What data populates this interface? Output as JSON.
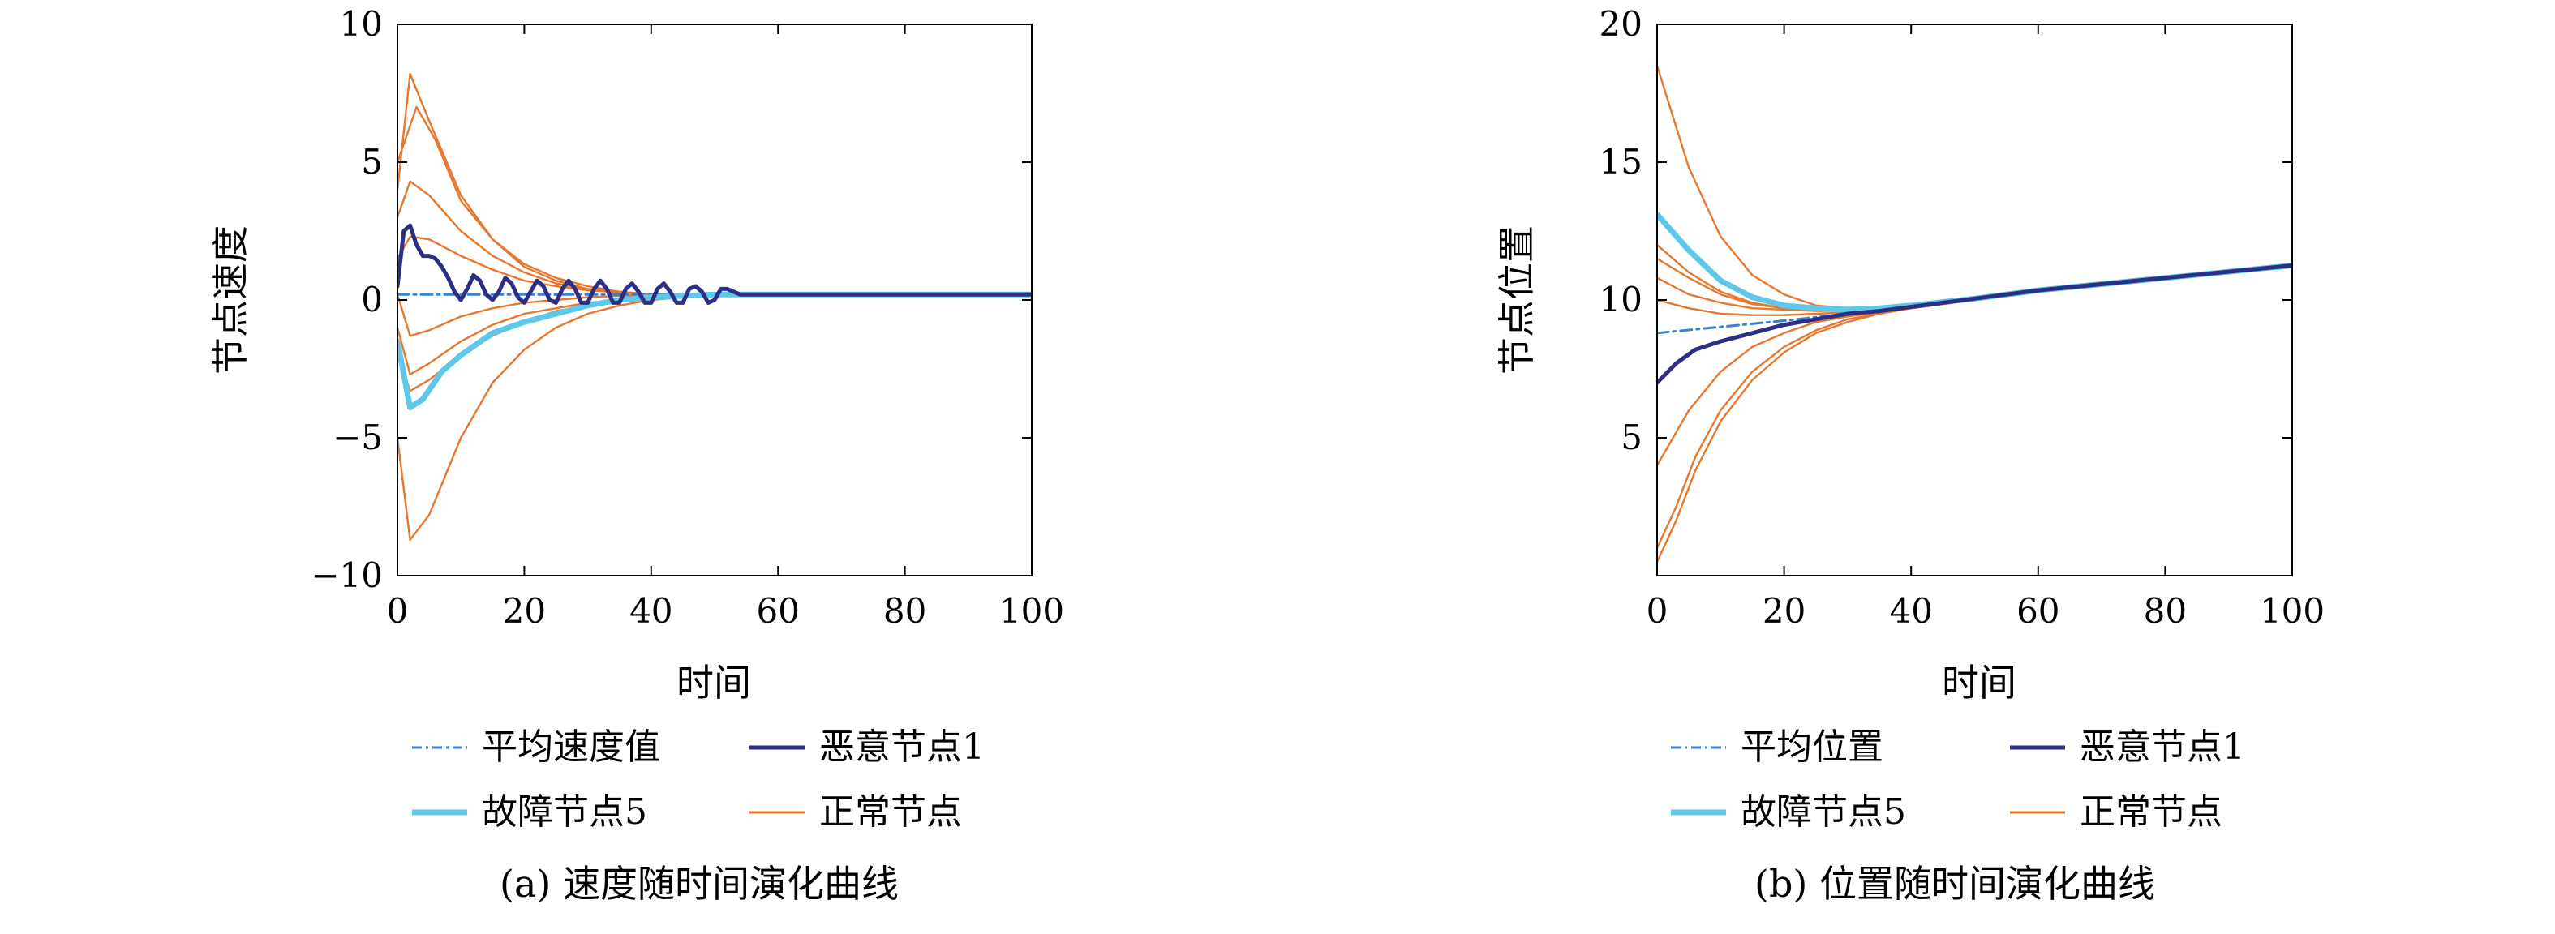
{
  "chart_data": [
    {
      "type": "line",
      "caption": "(a) 速度随时间演化曲线",
      "xlabel": "时间",
      "ylabel": "节点速度",
      "xlim": [
        0,
        100
      ],
      "ylim": [
        -10,
        10
      ],
      "xticks": [
        0,
        20,
        40,
        60,
        80,
        100
      ],
      "xtick_labels": [
        "0",
        "20",
        "40",
        "60",
        "80",
        "100"
      ],
      "yticks": [
        -10,
        -5,
        0,
        5,
        10
      ],
      "ytick_labels": [
        "−10",
        "−5",
        "0",
        "5",
        "10"
      ],
      "grid": false,
      "legend_position": "bottom",
      "legend": [
        {
          "label": "平均速度值",
          "color": "#3a7fd0",
          "style": "dashdot"
        },
        {
          "label": "恶意节点1",
          "color": "#2b2f86",
          "style": "solid"
        },
        {
          "label": "故障节点5",
          "color": "#5ec8e8",
          "style": "solid"
        },
        {
          "label": "正常节点",
          "color": "#e8772e",
          "style": "solid"
        }
      ],
      "series": [
        {
          "name": "正常节点",
          "color": "#e8772e",
          "x": [
            0,
            2,
            5,
            10,
            15,
            20,
            25,
            30,
            35,
            40,
            50,
            60,
            100
          ],
          "y": [
            4,
            8.2,
            6.5,
            3.8,
            2.2,
            1.2,
            0.7,
            0.4,
            0.3,
            0.2,
            0.2,
            0.2,
            0.2
          ]
        },
        {
          "name": "正常节点",
          "color": "#e8772e",
          "x": [
            0,
            3,
            6,
            10,
            15,
            20,
            25,
            30,
            35,
            40,
            50,
            60,
            100
          ],
          "y": [
            5,
            7,
            5.8,
            3.6,
            2.2,
            1.3,
            0.8,
            0.5,
            0.3,
            0.2,
            0.2,
            0.2,
            0.2
          ]
        },
        {
          "name": "正常节点",
          "color": "#e8772e",
          "x": [
            0,
            2,
            5,
            10,
            15,
            20,
            25,
            30,
            35,
            40,
            50,
            60,
            100
          ],
          "y": [
            3,
            4.3,
            3.8,
            2.5,
            1.6,
            1.0,
            0.6,
            0.4,
            0.3,
            0.2,
            0.2,
            0.2,
            0.2
          ]
        },
        {
          "name": "正常节点",
          "color": "#e8772e",
          "x": [
            0,
            2,
            5,
            10,
            15,
            20,
            25,
            30,
            40,
            50,
            60,
            100
          ],
          "y": [
            1.5,
            2.3,
            2.2,
            1.6,
            1.1,
            0.7,
            0.5,
            0.35,
            0.2,
            0.2,
            0.2,
            0.2
          ]
        },
        {
          "name": "正常节点",
          "color": "#e8772e",
          "x": [
            0,
            2,
            5,
            10,
            15,
            20,
            25,
            30,
            40,
            50,
            60,
            100
          ],
          "y": [
            0.2,
            -1.3,
            -1.1,
            -0.6,
            -0.3,
            -0.1,
            0.0,
            0.1,
            0.2,
            0.2,
            0.2,
            0.2
          ]
        },
        {
          "name": "正常节点",
          "color": "#e8772e",
          "x": [
            0,
            2,
            5,
            10,
            15,
            20,
            25,
            30,
            40,
            50,
            60,
            100
          ],
          "y": [
            -1,
            -2.7,
            -2.3,
            -1.5,
            -0.9,
            -0.5,
            -0.3,
            -0.1,
            0.1,
            0.2,
            0.2,
            0.2
          ]
        },
        {
          "name": "正常节点",
          "color": "#e8772e",
          "x": [
            0,
            2,
            5,
            10,
            15,
            20,
            25,
            30,
            40,
            50,
            60,
            100
          ],
          "y": [
            -2,
            -3.3,
            -2.9,
            -2.0,
            -1.3,
            -0.8,
            -0.4,
            -0.2,
            0.1,
            0.2,
            0.2,
            0.2
          ]
        },
        {
          "name": "正常节点",
          "color": "#e8772e",
          "x": [
            0,
            2,
            5,
            10,
            15,
            20,
            25,
            30,
            35,
            40,
            50,
            60,
            100
          ],
          "y": [
            -5,
            -8.7,
            -7.8,
            -5.0,
            -3.0,
            -1.8,
            -1.0,
            -0.5,
            -0.2,
            0.0,
            0.2,
            0.2,
            0.2
          ]
        },
        {
          "name": "平均速度值",
          "color": "#3a7fd0",
          "x": [
            0,
            100
          ],
          "y": [
            0.2,
            0.2
          ]
        },
        {
          "name": "故障节点5",
          "color": "#5ec8e8",
          "x": [
            0,
            2,
            4,
            7,
            10,
            15,
            20,
            25,
            30,
            35,
            40,
            50,
            60,
            100
          ],
          "y": [
            -1.5,
            -3.9,
            -3.6,
            -2.6,
            -2.0,
            -1.2,
            -0.8,
            -0.5,
            -0.2,
            0.0,
            0.1,
            0.2,
            0.2,
            0.2
          ]
        },
        {
          "name": "恶意节点1",
          "color": "#2b2f86",
          "x": [
            0,
            1,
            2,
            3,
            4,
            5,
            6,
            7,
            8,
            9,
            10,
            11,
            12,
            13,
            14,
            15,
            16,
            17,
            18,
            19,
            20,
            21,
            22,
            23,
            24,
            25,
            26,
            27,
            28,
            29,
            30,
            31,
            32,
            33,
            34,
            35,
            36,
            37,
            38,
            39,
            40,
            41,
            42,
            43,
            44,
            45,
            46,
            47,
            48,
            49,
            50,
            51,
            52,
            53,
            54,
            55,
            60,
            100
          ],
          "y": [
            0.5,
            2.5,
            2.7,
            2.0,
            1.6,
            1.6,
            1.5,
            1.2,
            0.8,
            0.3,
            0.0,
            0.4,
            0.9,
            0.7,
            0.2,
            0.0,
            0.3,
            0.8,
            0.6,
            0.1,
            -0.1,
            0.3,
            0.7,
            0.5,
            0.0,
            -0.1,
            0.4,
            0.7,
            0.4,
            -0.1,
            -0.1,
            0.4,
            0.7,
            0.4,
            -0.1,
            -0.1,
            0.4,
            0.6,
            0.3,
            -0.1,
            -0.1,
            0.4,
            0.6,
            0.3,
            -0.1,
            -0.1,
            0.4,
            0.5,
            0.3,
            -0.1,
            0.0,
            0.4,
            0.4,
            0.3,
            0.2,
            0.2,
            0.2,
            0.2
          ]
        }
      ]
    },
    {
      "type": "line",
      "caption": "(b) 位置随时间演化曲线",
      "xlabel": "时间",
      "ylabel": "节点位置",
      "xlim": [
        0,
        100
      ],
      "ylim": [
        0,
        20
      ],
      "xticks": [
        0,
        20,
        40,
        60,
        80,
        100
      ],
      "xtick_labels": [
        "0",
        "20",
        "40",
        "60",
        "80",
        "100"
      ],
      "yticks": [
        5,
        10,
        15,
        20
      ],
      "ytick_labels": [
        "5",
        "10",
        "15",
        "20"
      ],
      "grid": false,
      "legend_position": "bottom",
      "legend": [
        {
          "label": "平均位置",
          "color": "#3a7fd0",
          "style": "dashdot"
        },
        {
          "label": "恶意节点1",
          "color": "#2b2f86",
          "style": "solid"
        },
        {
          "label": "故障节点5",
          "color": "#5ec8e8",
          "style": "solid"
        },
        {
          "label": "正常节点",
          "color": "#e8772e",
          "style": "solid"
        }
      ],
      "series": [
        {
          "name": "正常节点",
          "color": "#e8772e",
          "x": [
            0,
            5,
            10,
            15,
            20,
            25,
            30,
            35,
            40,
            50,
            60,
            80,
            100
          ],
          "y": [
            18.5,
            14.8,
            12.3,
            10.9,
            10.2,
            9.8,
            9.7,
            9.7,
            9.8,
            10.05,
            10.35,
            10.8,
            11.25
          ]
        },
        {
          "name": "正常节点",
          "color": "#e8772e",
          "x": [
            0,
            5,
            10,
            15,
            20,
            25,
            30,
            35,
            40,
            50,
            60,
            80,
            100
          ],
          "y": [
            12,
            11.0,
            10.3,
            9.9,
            9.7,
            9.65,
            9.65,
            9.7,
            9.8,
            10.05,
            10.35,
            10.8,
            11.25
          ]
        },
        {
          "name": "正常节点",
          "color": "#e8772e",
          "x": [
            0,
            5,
            10,
            15,
            20,
            25,
            30,
            35,
            40,
            50,
            60,
            80,
            100
          ],
          "y": [
            11.5,
            10.8,
            10.2,
            9.85,
            9.7,
            9.65,
            9.65,
            9.7,
            9.8,
            10.05,
            10.35,
            10.8,
            11.25
          ]
        },
        {
          "name": "正常节点",
          "color": "#e8772e",
          "x": [
            0,
            5,
            10,
            15,
            20,
            25,
            30,
            35,
            40,
            50,
            60,
            80,
            100
          ],
          "y": [
            10.8,
            10.2,
            9.9,
            9.7,
            9.65,
            9.6,
            9.6,
            9.7,
            9.8,
            10.05,
            10.35,
            10.8,
            11.25
          ]
        },
        {
          "name": "正常节点",
          "color": "#e8772e",
          "x": [
            0,
            5,
            10,
            15,
            20,
            25,
            30,
            35,
            40,
            50,
            60,
            80,
            100
          ],
          "y": [
            10.0,
            9.7,
            9.5,
            9.45,
            9.45,
            9.5,
            9.55,
            9.65,
            9.8,
            10.05,
            10.35,
            10.8,
            11.25
          ]
        },
        {
          "name": "正常节点",
          "color": "#e8772e",
          "x": [
            0,
            5,
            10,
            15,
            20,
            25,
            30,
            35,
            40,
            50,
            60,
            80,
            100
          ],
          "y": [
            4.0,
            6.0,
            7.4,
            8.3,
            8.8,
            9.2,
            9.4,
            9.55,
            9.7,
            10.0,
            10.35,
            10.8,
            11.25
          ]
        },
        {
          "name": "正常节点",
          "color": "#e8772e",
          "x": [
            0,
            3,
            6,
            10,
            15,
            20,
            25,
            30,
            35,
            40,
            50,
            60,
            80,
            100
          ],
          "y": [
            1.0,
            2.5,
            4.3,
            6.0,
            7.4,
            8.3,
            8.9,
            9.3,
            9.5,
            9.7,
            10.0,
            10.35,
            10.8,
            11.25
          ]
        },
        {
          "name": "正常节点",
          "color": "#e8772e",
          "x": [
            0,
            3,
            6,
            10,
            15,
            20,
            25,
            30,
            35,
            40,
            50,
            60,
            80,
            100
          ],
          "y": [
            0.5,
            2.0,
            3.8,
            5.6,
            7.1,
            8.1,
            8.8,
            9.2,
            9.5,
            9.7,
            10.0,
            10.35,
            10.8,
            11.25
          ]
        },
        {
          "name": "平均位置",
          "color": "#3a7fd0",
          "x": [
            0,
            20,
            40,
            60,
            80,
            100
          ],
          "y": [
            8.8,
            9.25,
            9.75,
            10.3,
            10.8,
            11.25
          ]
        },
        {
          "name": "故障节点5",
          "color": "#5ec8e8",
          "x": [
            0,
            5,
            10,
            15,
            20,
            25,
            30,
            35,
            40,
            50,
            60,
            80,
            100
          ],
          "y": [
            13.1,
            11.8,
            10.7,
            10.1,
            9.8,
            9.7,
            9.65,
            9.7,
            9.8,
            10.05,
            10.35,
            10.8,
            11.25
          ]
        },
        {
          "name": "恶意节点1",
          "color": "#2b2f86",
          "x": [
            0,
            3,
            6,
            10,
            15,
            20,
            25,
            30,
            35,
            40,
            50,
            60,
            80,
            100
          ],
          "y": [
            7.0,
            7.7,
            8.2,
            8.5,
            8.8,
            9.1,
            9.3,
            9.5,
            9.6,
            9.75,
            10.05,
            10.35,
            10.8,
            11.25
          ]
        }
      ]
    }
  ]
}
